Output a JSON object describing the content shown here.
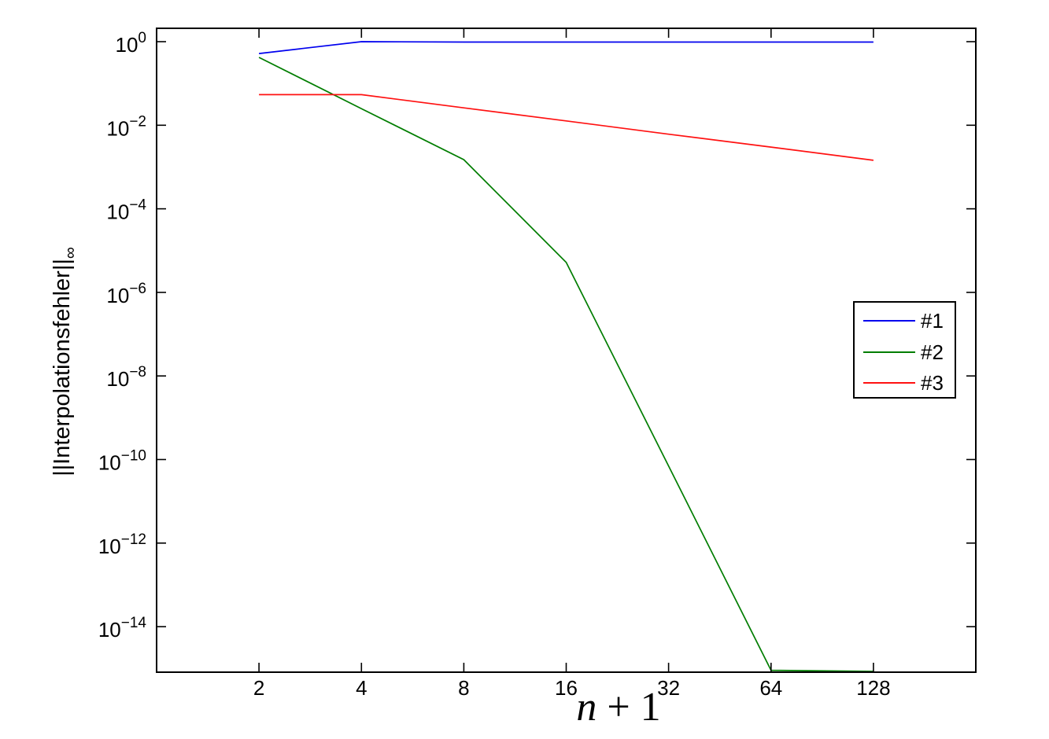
{
  "figure": {
    "background": "#ffffff",
    "axis_color": "#000000"
  },
  "chart_data": {
    "type": "line",
    "log_x": true,
    "log_y": true,
    "title": "",
    "xlabel_var": "n",
    "xlabel_rest": " + 1",
    "xlabel_full": "n + 1",
    "ylabel": "||Interpolationsfehler||",
    "ylabel_subscript": "∞",
    "x_ticks": [
      2,
      4,
      8,
      16,
      32,
      64,
      128
    ],
    "y_tick_exponents": [
      0,
      -2,
      -4,
      -6,
      -8,
      -10,
      -12,
      -14
    ],
    "xlim": [
      1,
      256
    ],
    "ylim_log10": [
      -15.09,
      0.32
    ],
    "grid": false,
    "legend_position": "right-middle",
    "x": [
      2,
      4,
      8,
      16,
      32,
      64,
      128
    ],
    "series": [
      {
        "name": "#1",
        "color": "#0000ee",
        "values": [
          0.52,
          1.0,
          0.98,
          0.98,
          0.98,
          0.98,
          0.98
        ]
      },
      {
        "name": "#2",
        "color": "#007d00",
        "values": [
          0.42,
          0.025,
          0.0015,
          5.2e-06,
          7e-11,
          9e-16,
          8.5e-16
        ]
      },
      {
        "name": "#3",
        "color": "#ff1111",
        "values": [
          0.054,
          0.054,
          0.026,
          0.0127,
          0.0061,
          0.003,
          0.00145
        ]
      }
    ]
  },
  "legend": {
    "items": [
      {
        "label": "#1"
      },
      {
        "label": "#2"
      },
      {
        "label": "#3"
      }
    ]
  }
}
